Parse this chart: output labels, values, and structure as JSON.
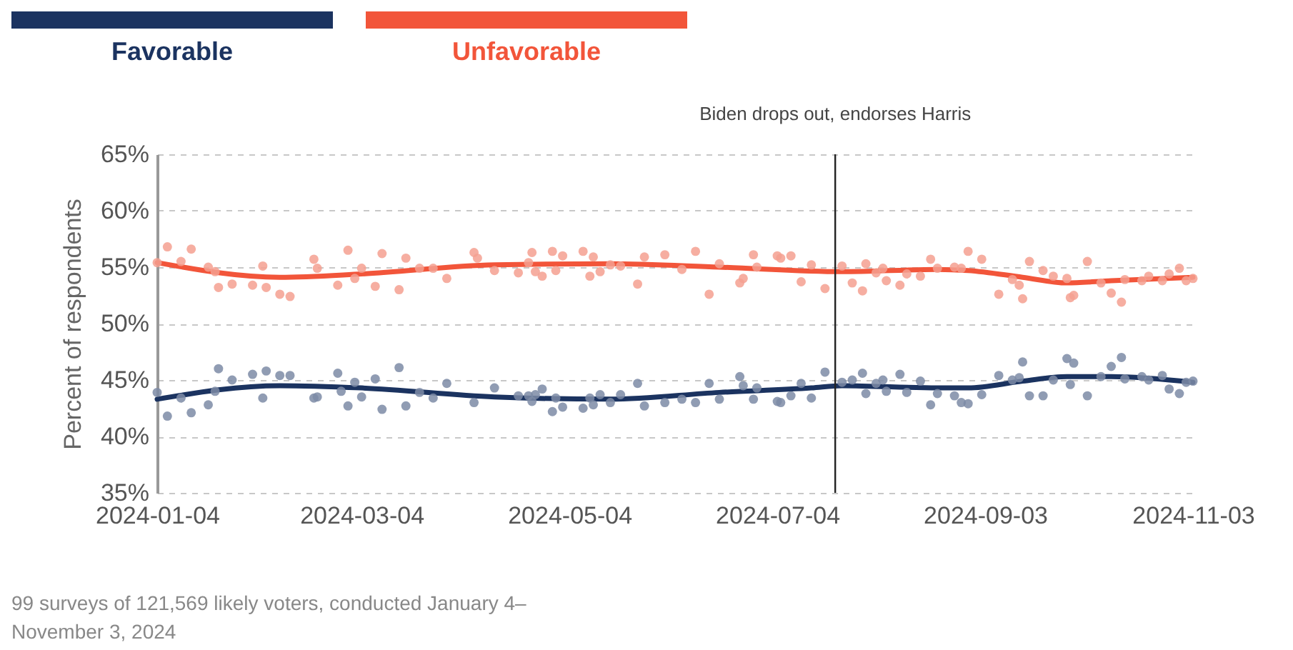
{
  "chart_data": {
    "type": "line",
    "ylabel": "Percent of respondents",
    "legend": "top",
    "grid": "y",
    "xlim": [
      "2024-01-04",
      "2024-11-03"
    ],
    "xticks": [
      "2024-01-04",
      "2024-03-04",
      "2024-05-04",
      "2024-07-04",
      "2024-09-03",
      "2024-11-03"
    ],
    "ylim": [
      35,
      65
    ],
    "yticks": [
      {
        "value": 35,
        "label": "35%"
      },
      {
        "value": 40,
        "label": "40%"
      },
      {
        "value": 45,
        "label": "45%"
      },
      {
        "value": 50,
        "label": "50%"
      },
      {
        "value": 55,
        "label": "55%"
      },
      {
        "value": 60,
        "label": "60%"
      },
      {
        "value": 65,
        "label": "65%"
      }
    ],
    "ref_lines": [
      {
        "axis": "x",
        "value": "2024-07-21",
        "label": "Biden drops out, endorses Harris",
        "color": "#222222"
      }
    ],
    "annotations": [
      "99 surveys of 121,569 likely voters, conducted January 4–November 3, 2024"
    ],
    "series": [
      {
        "type": "scatter",
        "marker": "circle",
        "color": "#7d8ba6",
        "x": [
          "2024-01-04",
          "2024-01-07",
          "2024-01-11",
          "2024-01-14",
          "2024-01-19",
          "2024-01-21",
          "2024-01-22",
          "2024-01-26",
          "2024-02-01",
          "2024-02-04",
          "2024-02-05",
          "2024-02-09",
          "2024-02-12",
          "2024-02-19",
          "2024-02-20",
          "2024-02-26",
          "2024-02-27",
          "2024-02-29",
          "2024-03-02",
          "2024-03-04",
          "2024-03-08",
          "2024-03-10",
          "2024-03-15",
          "2024-03-17",
          "2024-03-21",
          "2024-03-25",
          "2024-03-29",
          "2024-04-06",
          "2024-04-12",
          "2024-04-19",
          "2024-04-22",
          "2024-04-23",
          "2024-04-24",
          "2024-04-26",
          "2024-04-29",
          "2024-04-30",
          "2024-05-02",
          "2024-05-08",
          "2024-05-10",
          "2024-05-11",
          "2024-05-13",
          "2024-05-16",
          "2024-05-19",
          "2024-05-24",
          "2024-05-26",
          "2024-06-01",
          "2024-06-06",
          "2024-06-10",
          "2024-06-14",
          "2024-06-17",
          "2024-06-23",
          "2024-06-24",
          "2024-06-27",
          "2024-06-28",
          "2024-07-04",
          "2024-07-05",
          "2024-07-08",
          "2024-07-11",
          "2024-07-14",
          "2024-07-18",
          "2024-07-23",
          "2024-07-26",
          "2024-07-29",
          "2024-07-30",
          "2024-08-02",
          "2024-08-04",
          "2024-08-05",
          "2024-08-09",
          "2024-08-11",
          "2024-08-15",
          "2024-08-18",
          "2024-08-20",
          "2024-08-25",
          "2024-08-27",
          "2024-08-29",
          "2024-09-02",
          "2024-09-07",
          "2024-09-11",
          "2024-09-13",
          "2024-09-14",
          "2024-09-16",
          "2024-09-20",
          "2024-09-23",
          "2024-09-27",
          "2024-09-28",
          "2024-09-29",
          "2024-10-03",
          "2024-10-07",
          "2024-10-10",
          "2024-10-13",
          "2024-10-14",
          "2024-10-19",
          "2024-10-21",
          "2024-10-25",
          "2024-10-27",
          "2024-10-30",
          "2024-11-01",
          "2024-11-03"
        ],
        "values": [
          43.9,
          41.8,
          43.4,
          42.1,
          42.8,
          44.0,
          46.0,
          45.0,
          45.5,
          43.4,
          45.8,
          45.4,
          45.4,
          43.4,
          43.5,
          45.6,
          44.0,
          42.7,
          44.8,
          43.5,
          45.1,
          42.4,
          46.1,
          42.7,
          43.9,
          43.4,
          44.7,
          43.0,
          44.3,
          43.6,
          43.6,
          43.1,
          43.7,
          44.2,
          42.2,
          43.4,
          42.6,
          42.5,
          43.4,
          42.8,
          43.7,
          43.0,
          43.7,
          44.7,
          42.7,
          43.0,
          43.3,
          43.0,
          44.7,
          43.3,
          45.3,
          44.5,
          43.3,
          44.3,
          43.1,
          43.0,
          43.6,
          44.7,
          43.4,
          45.7,
          44.8,
          45.0,
          45.6,
          43.8,
          44.7,
          45.0,
          44.0,
          45.5,
          43.9,
          44.9,
          42.8,
          43.8,
          43.6,
          43.0,
          42.9,
          43.7,
          45.4,
          45.0,
          45.2,
          46.6,
          43.6,
          43.6,
          45.0,
          46.9,
          44.6,
          46.5,
          43.6,
          45.3,
          46.2,
          47.0,
          45.1,
          45.3,
          45.0,
          45.4,
          44.2,
          43.8,
          44.8,
          44.9
        ]
      },
      {
        "type": "scatter",
        "marker": "circle",
        "color": "#f4a090",
        "x": [
          "2024-01-04",
          "2024-01-07",
          "2024-01-11",
          "2024-01-14",
          "2024-01-19",
          "2024-01-21",
          "2024-01-22",
          "2024-01-26",
          "2024-02-01",
          "2024-02-04",
          "2024-02-05",
          "2024-02-09",
          "2024-02-12",
          "2024-02-19",
          "2024-02-20",
          "2024-02-26",
          "2024-02-29",
          "2024-03-02",
          "2024-03-04",
          "2024-03-08",
          "2024-03-10",
          "2024-03-15",
          "2024-03-17",
          "2024-03-21",
          "2024-03-25",
          "2024-03-29",
          "2024-04-06",
          "2024-04-07",
          "2024-04-12",
          "2024-04-19",
          "2024-04-22",
          "2024-04-23",
          "2024-04-24",
          "2024-04-26",
          "2024-04-29",
          "2024-04-30",
          "2024-05-02",
          "2024-05-08",
          "2024-05-10",
          "2024-05-11",
          "2024-05-13",
          "2024-05-16",
          "2024-05-19",
          "2024-05-24",
          "2024-05-26",
          "2024-06-01",
          "2024-06-06",
          "2024-06-10",
          "2024-06-14",
          "2024-06-17",
          "2024-06-23",
          "2024-06-24",
          "2024-06-27",
          "2024-06-28",
          "2024-07-04",
          "2024-07-05",
          "2024-07-08",
          "2024-07-11",
          "2024-07-14",
          "2024-07-18",
          "2024-07-23",
          "2024-07-26",
          "2024-07-29",
          "2024-07-30",
          "2024-08-02",
          "2024-08-04",
          "2024-08-05",
          "2024-08-09",
          "2024-08-11",
          "2024-08-15",
          "2024-08-18",
          "2024-08-20",
          "2024-08-25",
          "2024-08-27",
          "2024-08-29",
          "2024-09-02",
          "2024-09-07",
          "2024-09-11",
          "2024-09-13",
          "2024-09-14",
          "2024-09-16",
          "2024-09-20",
          "2024-09-23",
          "2024-09-27",
          "2024-09-28",
          "2024-09-29",
          "2024-10-03",
          "2024-10-07",
          "2024-10-10",
          "2024-10-13",
          "2024-10-14",
          "2024-10-19",
          "2024-10-21",
          "2024-10-25",
          "2024-10-27",
          "2024-10-30",
          "2024-11-01",
          "2024-11-03"
        ],
        "values": [
          55.4,
          56.8,
          55.5,
          56.6,
          55.0,
          54.6,
          53.2,
          53.5,
          53.4,
          55.1,
          53.2,
          52.6,
          52.4,
          55.7,
          54.9,
          53.4,
          56.5,
          54.0,
          54.9,
          53.3,
          56.2,
          53.0,
          55.8,
          54.9,
          54.9,
          54.0,
          56.3,
          55.8,
          54.7,
          54.5,
          55.4,
          56.3,
          54.6,
          54.2,
          56.4,
          54.7,
          56.0,
          56.4,
          54.2,
          55.9,
          54.6,
          55.2,
          55.1,
          53.5,
          55.9,
          56.1,
          54.8,
          56.4,
          52.6,
          55.3,
          53.6,
          54.0,
          56.1,
          55.0,
          56.0,
          55.8,
          56.0,
          53.7,
          55.2,
          53.1,
          55.1,
          53.6,
          52.9,
          55.3,
          54.5,
          54.9,
          53.8,
          53.4,
          54.4,
          54.2,
          55.7,
          54.9,
          55.0,
          54.9,
          56.4,
          55.7,
          52.6,
          53.9,
          53.4,
          52.2,
          55.5,
          54.7,
          54.2,
          54.0,
          52.3,
          52.5,
          55.5,
          53.6,
          52.7,
          51.9,
          53.9,
          53.8,
          54.2,
          53.8,
          54.4,
          54.9,
          53.8,
          54.0
        ]
      },
      {
        "type": "line",
        "name": "Favorable",
        "color": "#1b3360",
        "x": [
          "2024-01-04",
          "2024-02-09",
          "2024-03-04",
          "2024-04-12",
          "2024-05-16",
          "2024-06-17",
          "2024-07-14",
          "2024-07-23",
          "2024-08-20",
          "2024-08-29",
          "2024-09-14",
          "2024-09-27",
          "2024-10-10",
          "2024-11-03"
        ],
        "values": [
          43.3,
          44.5,
          44.3,
          43.5,
          43.3,
          43.9,
          44.3,
          44.5,
          44.3,
          44.3,
          44.9,
          45.3,
          45.3,
          44.8
        ]
      },
      {
        "type": "line",
        "name": "Unfavorable",
        "color": "#f2553a",
        "x": [
          "2024-01-04",
          "2024-02-09",
          "2024-03-04",
          "2024-04-12",
          "2024-05-16",
          "2024-06-17",
          "2024-07-23",
          "2024-08-20",
          "2024-08-29",
          "2024-09-14",
          "2024-09-27",
          "2024-10-10",
          "2024-11-03"
        ],
        "values": [
          55.4,
          54.1,
          54.4,
          55.2,
          55.3,
          55.0,
          54.6,
          54.8,
          54.7,
          54.1,
          53.6,
          53.8,
          54.1
        ]
      }
    ]
  }
}
